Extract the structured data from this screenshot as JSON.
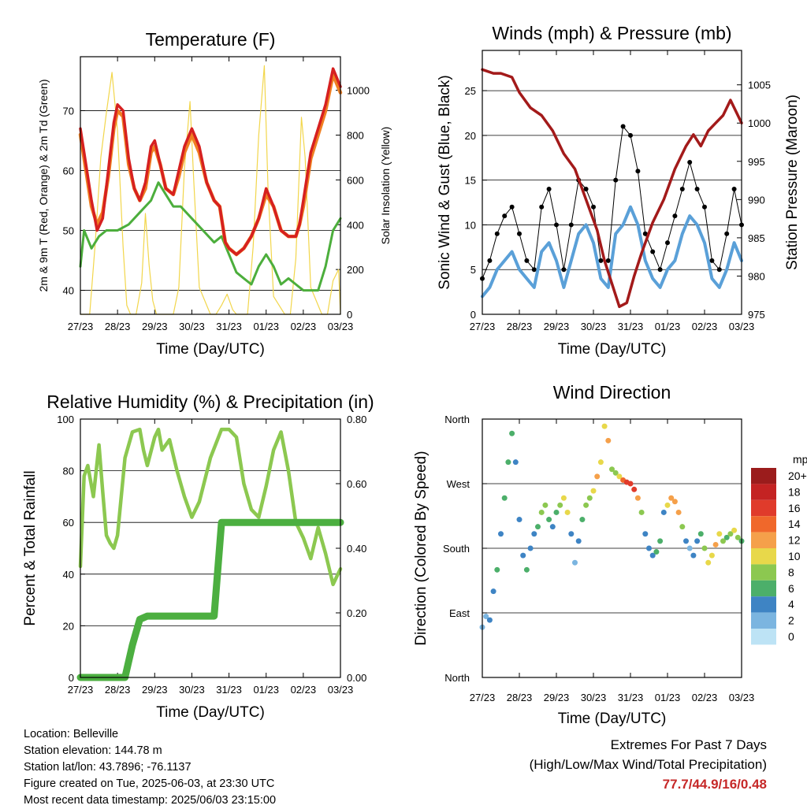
{
  "x_ticks": [
    "27/23",
    "28/23",
    "29/23",
    "30/23",
    "31/23",
    "01/23",
    "02/23",
    "03/23"
  ],
  "info": {
    "location": "Location: Belleville",
    "elevation": "Station elevation: 144.78 m",
    "latlon": "Station lat/lon: 43.7896; -76.1137",
    "created": "Figure created on Tue, 2025-06-03, at 23:30 UTC",
    "recent": "Most recent data timestamp: 2025/06/03 23:15:00"
  },
  "extremes": {
    "title": "Extremes For Past 7 Days",
    "subtitle": "(High/Low/Max Wind/Total Precipitation)",
    "values": "77.7/44.9/16/0.48",
    "color": "#c62828"
  },
  "chart_data": [
    {
      "type": "line",
      "title": "Temperature (F)",
      "xlabel": "Time (Day/UTC)",
      "ylabel": "2m & 9m T (Red, Orange) & 2m Td (Green)",
      "ylabel_right": "Solar Insolation (Yellow)",
      "ylim": [
        36,
        79
      ],
      "ylim_right": [
        0,
        1150
      ],
      "yticks": [
        40,
        50,
        60,
        70
      ],
      "yticks_right": [
        0,
        200,
        400,
        600,
        800,
        1000
      ],
      "colors": {
        "temp2m": "#d62020",
        "temp9m": "#f07f22",
        "dewpoint": "#4cae3c",
        "solar": "#f2d64b"
      },
      "series": [
        {
          "key": "temp2m",
          "x": [
            0,
            0.15,
            0.3,
            0.45,
            0.6,
            0.75,
            0.9,
            1.0,
            1.15,
            1.3,
            1.45,
            1.6,
            1.75,
            1.9,
            2.0,
            2.15,
            2.3,
            2.5,
            2.65,
            2.8,
            3.0,
            3.2,
            3.4,
            3.6,
            3.75,
            3.9,
            4.0,
            4.2,
            4.4,
            4.6,
            4.8,
            5.0,
            5.2,
            5.4,
            5.6,
            5.8,
            5.9,
            6.0,
            6.2,
            6.4,
            6.6,
            6.8,
            7.0
          ],
          "values": [
            67,
            61,
            55,
            50,
            52,
            60,
            68,
            71,
            70,
            62,
            57,
            55,
            58,
            64,
            65,
            61,
            57,
            56,
            60,
            64,
            67,
            64,
            58,
            55,
            54,
            48,
            47,
            46,
            47,
            49,
            52,
            57,
            54,
            50,
            49,
            49,
            51,
            55,
            63,
            67,
            71,
            77,
            74
          ]
        },
        {
          "key": "temp9m",
          "x": [
            0,
            0.15,
            0.3,
            0.45,
            0.6,
            0.75,
            0.9,
            1.0,
            1.15,
            1.3,
            1.45,
            1.6,
            1.75,
            1.9,
            2.0,
            2.15,
            2.3,
            2.5,
            2.65,
            2.8,
            3.0,
            3.2,
            3.4,
            3.6,
            3.75,
            3.9,
            4.0,
            4.2,
            4.4,
            4.6,
            4.8,
            5.0,
            5.2,
            5.4,
            5.6,
            5.8,
            5.9,
            6.0,
            6.2,
            6.4,
            6.6,
            6.8,
            7.0
          ],
          "values": [
            66,
            60,
            54,
            51,
            53,
            59,
            67,
            70,
            69,
            61,
            57,
            55,
            57,
            63,
            64,
            61,
            57,
            56,
            59,
            63,
            66,
            63,
            58,
            55,
            54,
            48,
            47,
            46,
            47,
            49,
            52,
            56,
            54,
            50,
            49,
            49,
            51,
            54,
            62,
            66,
            70,
            76,
            73
          ]
        },
        {
          "key": "dewpoint",
          "x": [
            0,
            0.1,
            0.3,
            0.5,
            0.7,
            1.0,
            1.3,
            1.6,
            1.9,
            2.1,
            2.3,
            2.5,
            2.7,
            3.0,
            3.3,
            3.6,
            3.8,
            4.0,
            4.2,
            4.4,
            4.6,
            4.8,
            5.0,
            5.2,
            5.4,
            5.6,
            5.8,
            6.0,
            6.2,
            6.4,
            6.6,
            6.8,
            7.0
          ],
          "values": [
            44,
            50,
            47,
            49,
            50,
            50,
            51,
            53,
            55,
            58,
            56,
            54,
            54,
            52,
            50,
            48,
            49,
            46,
            43,
            42,
            41,
            44,
            46,
            44,
            41,
            42,
            41,
            40,
            40,
            40,
            44,
            50,
            52
          ]
        },
        {
          "key": "solar",
          "x": [
            0,
            0.25,
            0.4,
            0.55,
            0.7,
            0.85,
            1.0,
            1.15,
            1.25,
            1.35,
            1.5,
            1.65,
            1.75,
            1.85,
            1.95,
            2.05,
            2.2,
            2.5,
            2.65,
            2.8,
            2.95,
            3.05,
            3.2,
            3.5,
            3.65,
            3.8,
            3.95,
            4.1,
            4.2,
            4.5,
            4.65,
            4.8,
            4.95,
            5.05,
            5.2,
            5.5,
            5.65,
            5.8,
            5.95,
            6.05,
            6.2,
            6.5,
            6.65,
            6.8,
            6.95,
            7.0
          ],
          "values": [
            0,
            0,
            320,
            700,
            900,
            1080,
            820,
            300,
            40,
            0,
            0,
            140,
            450,
            220,
            60,
            0,
            0,
            0,
            120,
            650,
            950,
            600,
            120,
            0,
            0,
            40,
            90,
            20,
            0,
            0,
            300,
            800,
            1110,
            560,
            80,
            0,
            0,
            250,
            880,
            700,
            120,
            0,
            0,
            150,
            200,
            0
          ]
        }
      ]
    },
    {
      "type": "line",
      "title": "Winds (mph) & Pressure (mb)",
      "xlabel": "Time (Day/UTC)",
      "ylabel": "Sonic Wind & Gust (Blue, Black)",
      "ylabel_right": "Station Pressure (Maroon)",
      "ylim": [
        0,
        29.5
      ],
      "ylim_right": [
        975,
        1009.5
      ],
      "yticks": [
        0,
        5,
        10,
        15,
        20,
        25
      ],
      "yticks_right": [
        975,
        980,
        985,
        990,
        995,
        1000,
        1005
      ],
      "colors": {
        "wind": "#5aa0d8",
        "gust": "#000000",
        "pressure": "#a31a1a"
      },
      "series": [
        {
          "key": "wind",
          "x": [
            0,
            0.2,
            0.4,
            0.6,
            0.8,
            1.0,
            1.2,
            1.4,
            1.6,
            1.8,
            2.0,
            2.2,
            2.4,
            2.6,
            2.8,
            3.0,
            3.2,
            3.4,
            3.6,
            3.8,
            4.0,
            4.2,
            4.4,
            4.6,
            4.8,
            5.0,
            5.2,
            5.4,
            5.6,
            5.8,
            6.0,
            6.2,
            6.4,
            6.6,
            6.8,
            7.0
          ],
          "values": [
            2,
            3,
            5,
            6,
            7,
            5,
            4,
            3,
            7,
            8,
            6,
            3,
            6,
            9,
            10,
            8,
            4,
            3,
            9,
            10,
            12,
            10,
            6,
            4,
            3,
            5,
            6,
            9,
            11,
            10,
            8,
            4,
            3,
            5,
            8,
            6
          ]
        },
        {
          "key": "gust",
          "x": [
            0,
            0.2,
            0.4,
            0.6,
            0.8,
            1.0,
            1.2,
            1.4,
            1.6,
            1.8,
            2.0,
            2.2,
            2.4,
            2.6,
            2.8,
            3.0,
            3.2,
            3.4,
            3.6,
            3.8,
            4.0,
            4.2,
            4.4,
            4.6,
            4.8,
            5.0,
            5.2,
            5.4,
            5.6,
            5.8,
            6.0,
            6.2,
            6.4,
            6.6,
            6.8,
            7.0
          ],
          "values": [
            4,
            6,
            9,
            11,
            12,
            9,
            6,
            5,
            12,
            14,
            10,
            5,
            10,
            15,
            14,
            12,
            6,
            6,
            15,
            21,
            20,
            16,
            9,
            7,
            5,
            8,
            11,
            14,
            17,
            14,
            12,
            6,
            5,
            9,
            14,
            10
          ]
        },
        {
          "key": "pressure",
          "x": [
            0,
            0.3,
            0.5,
            0.8,
            1.0,
            1.3,
            1.6,
            1.9,
            2.2,
            2.5,
            2.8,
            3.1,
            3.3,
            3.5,
            3.7,
            3.9,
            4.1,
            4.3,
            4.6,
            4.9,
            5.2,
            5.5,
            5.7,
            5.9,
            6.1,
            6.3,
            6.5,
            6.7,
            6.9,
            7.0
          ],
          "values": [
            1007,
            1006.5,
            1006.5,
            1006,
            1004,
            1002,
            1001,
            999,
            996,
            994,
            990,
            986,
            982,
            979,
            976,
            976.5,
            980,
            983,
            987,
            990,
            994,
            997,
            998.5,
            997,
            999,
            1000,
            1001,
            1003,
            1001,
            1000
          ]
        }
      ]
    },
    {
      "type": "line",
      "title": "Relative Humidity (%) & Precipitation (in)",
      "xlabel": "Time (Day/UTC)",
      "ylabel": "Percent & Total Rainfall",
      "ylim": [
        0,
        100
      ],
      "ylim_right": [
        0,
        0.8
      ],
      "yticks": [
        0,
        20,
        40,
        60,
        80,
        100
      ],
      "yticks_right": [
        0.0,
        0.2,
        0.4,
        0.6,
        0.8
      ],
      "colors": {
        "rh": "#8cc850",
        "precip": "#4caf40"
      },
      "series": [
        {
          "key": "rh",
          "x": [
            0,
            0.1,
            0.2,
            0.35,
            0.5,
            0.6,
            0.7,
            0.8,
            0.9,
            1.0,
            1.2,
            1.4,
            1.6,
            1.7,
            1.8,
            2.0,
            2.1,
            2.2,
            2.4,
            2.6,
            2.8,
            3.0,
            3.2,
            3.5,
            3.8,
            4.0,
            4.2,
            4.4,
            4.6,
            4.8,
            5.0,
            5.2,
            5.4,
            5.6,
            5.8,
            6.0,
            6.2,
            6.4,
            6.6,
            6.8,
            7.0
          ],
          "values": [
            43,
            78,
            82,
            70,
            90,
            72,
            55,
            52,
            50,
            55,
            85,
            95,
            96,
            88,
            82,
            93,
            96,
            88,
            92,
            80,
            70,
            62,
            68,
            85,
            96,
            96,
            93,
            75,
            65,
            62,
            74,
            88,
            95,
            80,
            60,
            54,
            46,
            58,
            48,
            36,
            42
          ]
        },
        {
          "key": "precip",
          "x": [
            0,
            0.5,
            1.0,
            1.2,
            1.4,
            1.6,
            1.8,
            2.0,
            2.5,
            3.0,
            3.2,
            3.4,
            3.6,
            3.8,
            4.0,
            4.5,
            5.0,
            5.5,
            6.0,
            6.5,
            7.0
          ],
          "values": [
            0,
            0,
            0,
            0,
            0.1,
            0.18,
            0.19,
            0.19,
            0.19,
            0.19,
            0.19,
            0.19,
            0.19,
            0.48,
            0.48,
            0.48,
            0.48,
            0.48,
            0.48,
            0.48,
            0.48
          ]
        }
      ]
    },
    {
      "type": "scatter",
      "title": "Wind Direction",
      "xlabel": "Time (Day/UTC)",
      "ylabel": "Direction (Colored By Speed)",
      "yticks_labels": [
        "North",
        "East",
        "South",
        "West",
        "North"
      ],
      "colorbar": {
        "unit": "mph",
        "labels": [
          "20+",
          "18",
          "16",
          "14",
          "12",
          "10",
          "8",
          "6",
          "4",
          "2",
          "0"
        ],
        "colors": [
          "#9b1c1c",
          "#c42323",
          "#e03b2b",
          "#f0682b",
          "#f5a04a",
          "#e8d84a",
          "#8cc850",
          "#4caf6a",
          "#3e84c4",
          "#7bb5e0",
          "#bde3f5"
        ]
      },
      "series": [
        {
          "key": "direction_deg",
          "x": [
            0,
            0.1,
            0.2,
            0.3,
            0.4,
            0.5,
            0.6,
            0.7,
            0.8,
            0.9,
            1.0,
            1.1,
            1.2,
            1.3,
            1.4,
            1.5,
            1.6,
            1.7,
            1.8,
            1.9,
            2.0,
            2.1,
            2.2,
            2.3,
            2.4,
            2.5,
            2.6,
            2.7,
            2.8,
            2.9,
            3.0,
            3.1,
            3.2,
            3.3,
            3.4,
            3.5,
            3.6,
            3.7,
            3.8,
            3.9,
            4.0,
            4.1,
            4.2,
            4.3,
            4.4,
            4.5,
            4.6,
            4.7,
            4.8,
            4.9,
            5.0,
            5.1,
            5.2,
            5.3,
            5.4,
            5.5,
            5.6,
            5.7,
            5.8,
            5.9,
            6.0,
            6.1,
            6.2,
            6.3,
            6.4,
            6.5,
            6.6,
            6.7,
            6.8,
            6.9,
            7.0
          ],
          "values": [
            70,
            85,
            80,
            120,
            150,
            200,
            250,
            300,
            340,
            300,
            220,
            170,
            150,
            180,
            200,
            210,
            230,
            240,
            220,
            210,
            230,
            240,
            250,
            230,
            200,
            160,
            190,
            220,
            240,
            250,
            260,
            280,
            300,
            350,
            330,
            290,
            285,
            280,
            275,
            272,
            270,
            262,
            250,
            230,
            200,
            180,
            170,
            175,
            190,
            230,
            240,
            250,
            245,
            230,
            210,
            190,
            180,
            170,
            190,
            200,
            180,
            160,
            170,
            185,
            200,
            190,
            195,
            200,
            205,
            195,
            190
          ],
          "speeds": [
            3,
            3,
            4,
            5,
            6,
            5,
            7,
            7,
            6,
            5,
            4,
            5,
            6,
            5,
            4,
            6,
            9,
            8,
            6,
            5,
            7,
            9,
            11,
            10,
            5,
            3,
            5,
            6,
            8,
            9,
            10,
            12,
            10,
            11,
            12,
            9,
            8,
            10,
            14,
            16,
            17,
            16,
            13,
            8,
            4,
            4,
            5,
            6,
            6,
            4,
            10,
            13,
            13,
            12,
            8,
            4,
            3,
            4,
            5,
            7,
            9,
            10,
            11,
            12,
            10,
            8,
            7,
            9,
            11,
            8,
            7
          ]
        }
      ]
    }
  ]
}
